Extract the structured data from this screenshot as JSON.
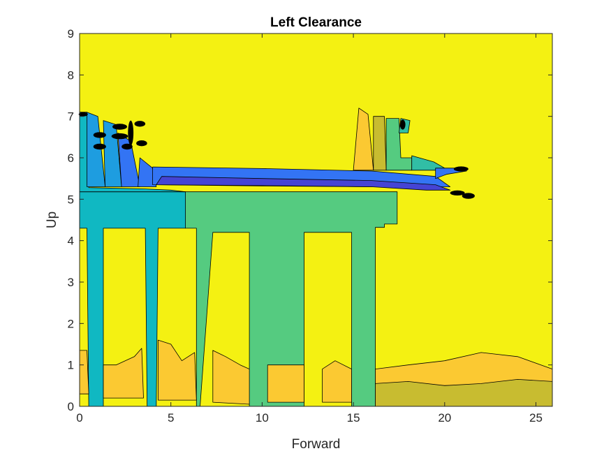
{
  "chart_data": {
    "type": "contour",
    "title": "Left Clearance",
    "xlabel": "Forward",
    "ylabel": "Up",
    "xlim": [
      0,
      25.9
    ],
    "ylim": [
      0,
      9
    ],
    "xticks": [
      0,
      5,
      10,
      15,
      20,
      25
    ],
    "yticks": [
      0,
      1,
      2,
      3,
      4,
      5,
      6,
      7,
      8,
      9
    ],
    "background_color": "#f4f112",
    "colors": {
      "yellow": "#f4f112",
      "gold": "#fbc932",
      "orange_gold": "#f3b93a",
      "olive": "#c8bc30",
      "green": "#55cb80",
      "teal_green": "#31bea5",
      "teal": "#10b8c2",
      "cyan_blue": "#1e9de0",
      "blue": "#3374f4",
      "violet": "#4544d4",
      "outline": "#000000"
    },
    "regions": [
      {
        "level": "green",
        "polygon": [
          [
            5.8,
            4.3
          ],
          [
            5.8,
            5.18
          ],
          [
            17.4,
            5.18
          ],
          [
            17.4,
            4.4
          ],
          [
            16.7,
            4.4
          ],
          [
            16.7,
            4.32
          ],
          [
            16.2,
            4.32
          ],
          [
            16.2,
            0
          ],
          [
            14.9,
            0
          ],
          [
            14.9,
            4.2
          ],
          [
            12.3,
            4.2
          ],
          [
            12.3,
            0
          ],
          [
            9.3,
            0
          ],
          [
            9.3,
            4.2
          ],
          [
            7.3,
            4.2
          ],
          [
            6.6,
            0
          ],
          [
            6.4,
            0
          ],
          [
            6.4,
            4.3
          ]
        ]
      },
      {
        "level": "teal",
        "polygon": [
          [
            0,
            4.3
          ],
          [
            0,
            5.18
          ],
          [
            5.8,
            5.18
          ],
          [
            5.8,
            4.3
          ],
          [
            5.0,
            4.3
          ],
          [
            4.3,
            4.3
          ],
          [
            4.2,
            0
          ],
          [
            3.7,
            0
          ],
          [
            3.6,
            4.3
          ],
          [
            3.4,
            4.3
          ],
          [
            1.3,
            4.3
          ],
          [
            1.3,
            0
          ],
          [
            0.5,
            0
          ],
          [
            0.4,
            4.3
          ]
        ]
      },
      {
        "level": "gold",
        "polygon": [
          [
            0,
            0.3
          ],
          [
            0,
            1.35
          ],
          [
            0.4,
            1.35
          ],
          [
            0.5,
            0.3
          ]
        ]
      },
      {
        "level": "gold",
        "polygon": [
          [
            1.3,
            0.2
          ],
          [
            1.3,
            1.0
          ],
          [
            2.0,
            1.0
          ],
          [
            3.0,
            1.2
          ],
          [
            3.4,
            1.4
          ],
          [
            3.5,
            0.2
          ]
        ]
      },
      {
        "level": "gold",
        "polygon": [
          [
            4.3,
            0.15
          ],
          [
            4.3,
            1.6
          ],
          [
            5.0,
            1.5
          ],
          [
            5.6,
            1.1
          ],
          [
            6.3,
            1.3
          ],
          [
            6.4,
            0.15
          ]
        ]
      },
      {
        "level": "gold",
        "polygon": [
          [
            7.3,
            0.1
          ],
          [
            7.3,
            1.35
          ],
          [
            8.0,
            1.2
          ],
          [
            8.8,
            1.0
          ],
          [
            9.3,
            0.9
          ],
          [
            9.3,
            0.05
          ]
        ]
      },
      {
        "level": "gold",
        "polygon": [
          [
            10.3,
            0.1
          ],
          [
            10.3,
            1.0
          ],
          [
            12.3,
            1.0
          ],
          [
            12.3,
            0.1
          ]
        ]
      },
      {
        "level": "gold",
        "polygon": [
          [
            13.3,
            0.1
          ],
          [
            13.3,
            0.9
          ],
          [
            14.0,
            1.1
          ],
          [
            14.9,
            0.9
          ],
          [
            14.9,
            0.1
          ]
        ]
      },
      {
        "level": "gold",
        "polygon": [
          [
            16.2,
            0.5
          ],
          [
            16.2,
            0.9
          ],
          [
            18.0,
            1.0
          ],
          [
            20.0,
            1.1
          ],
          [
            22.0,
            1.3
          ],
          [
            24.0,
            1.2
          ],
          [
            25.9,
            0.9
          ],
          [
            25.9,
            0.5
          ]
        ]
      },
      {
        "level": "olive",
        "polygon": [
          [
            16.2,
            0
          ],
          [
            16.2,
            0.55
          ],
          [
            18.0,
            0.6
          ],
          [
            20.0,
            0.5
          ],
          [
            22.0,
            0.55
          ],
          [
            24.0,
            0.65
          ],
          [
            25.9,
            0.6
          ],
          [
            25.9,
            0
          ]
        ]
      },
      {
        "level": "gold",
        "polygon": [
          [
            15.0,
            5.7
          ],
          [
            15.3,
            7.2
          ],
          [
            15.8,
            7.05
          ],
          [
            16.1,
            5.7
          ]
        ]
      },
      {
        "level": "olive",
        "polygon": [
          [
            16.1,
            5.7
          ],
          [
            16.1,
            7.0
          ],
          [
            16.7,
            7.0
          ],
          [
            16.8,
            5.7
          ]
        ]
      },
      {
        "level": "green",
        "polygon": [
          [
            16.8,
            5.7
          ],
          [
            16.8,
            6.95
          ],
          [
            17.5,
            6.95
          ],
          [
            17.6,
            6.0
          ],
          [
            18.2,
            6.0
          ],
          [
            18.2,
            5.7
          ]
        ]
      },
      {
        "level": "teal_green",
        "polygon": [
          [
            17.5,
            6.6
          ],
          [
            17.6,
            6.95
          ],
          [
            18.1,
            6.9
          ],
          [
            18.0,
            6.6
          ]
        ]
      },
      {
        "level": "teal_green",
        "polygon": [
          [
            18.2,
            5.7
          ],
          [
            18.2,
            6.05
          ],
          [
            19.4,
            5.9
          ],
          [
            20.0,
            5.75
          ],
          [
            20.0,
            5.7
          ]
        ]
      },
      {
        "level": "teal",
        "polygon": [
          [
            0,
            5.18
          ],
          [
            0,
            7.1
          ],
          [
            0.4,
            7.1
          ],
          [
            0.5,
            5.28
          ],
          [
            3.5,
            5.25
          ],
          [
            5.0,
            5.22
          ],
          [
            5.8,
            5.18
          ]
        ]
      },
      {
        "level": "cyan_blue",
        "polygon": [
          [
            0.4,
            5.3
          ],
          [
            0.4,
            7.1
          ],
          [
            1.0,
            7.0
          ],
          [
            1.4,
            5.3
          ]
        ]
      },
      {
        "level": "cyan_blue",
        "polygon": [
          [
            1.4,
            5.3
          ],
          [
            1.3,
            6.9
          ],
          [
            2.0,
            6.8
          ],
          [
            2.3,
            5.3
          ]
        ]
      },
      {
        "level": "blue",
        "polygon": [
          [
            2.3,
            5.3
          ],
          [
            2.1,
            6.6
          ],
          [
            2.8,
            6.4
          ],
          [
            3.3,
            5.3
          ]
        ]
      },
      {
        "level": "blue",
        "polygon": [
          [
            3.2,
            5.3
          ],
          [
            3.3,
            6.0
          ],
          [
            4.0,
            5.75
          ],
          [
            4.2,
            5.3
          ]
        ]
      },
      {
        "level": "blue",
        "polygon": [
          [
            4.0,
            5.35
          ],
          [
            4.0,
            5.78
          ],
          [
            10.0,
            5.74
          ],
          [
            16.0,
            5.68
          ],
          [
            19.5,
            5.55
          ],
          [
            20.3,
            5.3
          ],
          [
            16.0,
            5.3
          ],
          [
            10.0,
            5.32
          ]
        ]
      },
      {
        "level": "violet",
        "polygon": [
          [
            4.2,
            5.35
          ],
          [
            4.5,
            5.55
          ],
          [
            10.0,
            5.5
          ],
          [
            16.0,
            5.45
          ],
          [
            19.5,
            5.35
          ],
          [
            20.3,
            5.22
          ],
          [
            19.0,
            5.22
          ],
          [
            16.0,
            5.3
          ],
          [
            10.0,
            5.33
          ]
        ]
      },
      {
        "level": "blue",
        "polygon": [
          [
            19.5,
            5.5
          ],
          [
            19.5,
            5.75
          ],
          [
            21.2,
            5.75
          ],
          [
            21.2,
            5.68
          ],
          [
            20.1,
            5.6
          ]
        ]
      }
    ],
    "black_blobs": [
      {
        "center": [
          0.2,
          7.05
        ],
        "rx": 0.25,
        "ry": 0.04
      },
      {
        "center": [
          1.1,
          6.55
        ],
        "rx": 0.35,
        "ry": 0.07
      },
      {
        "center": [
          1.1,
          6.27
        ],
        "rx": 0.35,
        "ry": 0.07
      },
      {
        "center": [
          2.2,
          6.75
        ],
        "rx": 0.4,
        "ry": 0.07
      },
      {
        "center": [
          2.2,
          6.52
        ],
        "rx": 0.45,
        "ry": 0.07
      },
      {
        "center": [
          2.6,
          6.27
        ],
        "rx": 0.3,
        "ry": 0.07
      },
      {
        "center": [
          2.8,
          6.6
        ],
        "rx": 0.15,
        "ry": 0.3
      },
      {
        "center": [
          3.3,
          6.82
        ],
        "rx": 0.3,
        "ry": 0.07
      },
      {
        "center": [
          3.4,
          6.35
        ],
        "rx": 0.3,
        "ry": 0.07
      },
      {
        "center": [
          20.9,
          5.73
        ],
        "rx": 0.4,
        "ry": 0.06
      },
      {
        "center": [
          20.7,
          5.15
        ],
        "rx": 0.4,
        "ry": 0.06
      },
      {
        "center": [
          21.3,
          5.08
        ],
        "rx": 0.35,
        "ry": 0.07
      },
      {
        "center": [
          17.7,
          6.8
        ],
        "rx": 0.15,
        "ry": 0.12
      }
    ]
  }
}
